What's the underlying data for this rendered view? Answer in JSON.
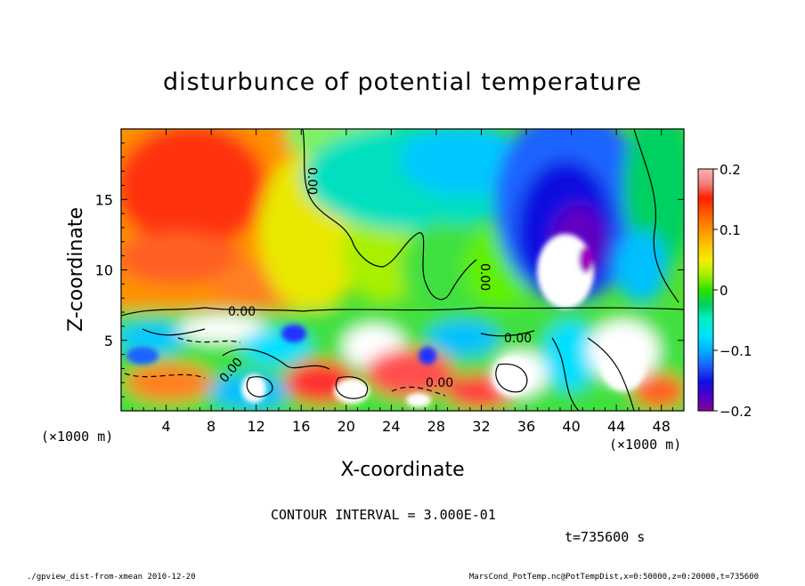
{
  "chart_data": {
    "type": "heatmap",
    "title": "disturbunce of potential temperature",
    "xlabel": "X-coordinate",
    "ylabel": "Z-coordinate",
    "x_unit": "(×1000 m)",
    "x_unit_right": "(×1000 m)",
    "x_ticks": [
      "4",
      "8",
      "12",
      "16",
      "20",
      "24",
      "28",
      "32",
      "36",
      "40",
      "44",
      "48"
    ],
    "x_tick_values": [
      4,
      8,
      12,
      16,
      20,
      24,
      28,
      32,
      36,
      40,
      44,
      48
    ],
    "y_ticks": [
      "5",
      "10",
      "15"
    ],
    "y_tick_values": [
      5,
      10,
      15
    ],
    "xlim": [
      0,
      50
    ],
    "ylim": [
      0,
      20
    ],
    "colorbar": {
      "ticks": [
        "0.2",
        "0.1",
        "0",
        "−0.1",
        "−0.2"
      ],
      "tick_values": [
        0.2,
        0.1,
        0,
        -0.1,
        -0.2
      ],
      "range": [
        -0.2,
        0.2
      ],
      "colors": [
        "#8a0099",
        "#4b00c8",
        "#1010e0",
        "#1e64ff",
        "#00b0ff",
        "#00e0ff",
        "#00f0c0",
        "#00d060",
        "#30e000",
        "#a0f000",
        "#f0f000",
        "#ffc000",
        "#ff9000",
        "#ff6000",
        "#ff2000",
        "#f08080",
        "#ffb0b0"
      ]
    },
    "contour_labels": [
      "0.00",
      "0.00",
      "0.00",
      "0.00",
      "0.00",
      "0.00"
    ],
    "contour_interval_text": "CONTOUR INTERVAL = 3.000E-01",
    "time_text": "t=735600  s"
  },
  "footer": {
    "left": "./gpview_dist-from-xmean   2010-12-20",
    "right": "MarsCond_PotTemp.nc@PotTempDist,x=0:50000,z=0:20000,t=735600"
  }
}
